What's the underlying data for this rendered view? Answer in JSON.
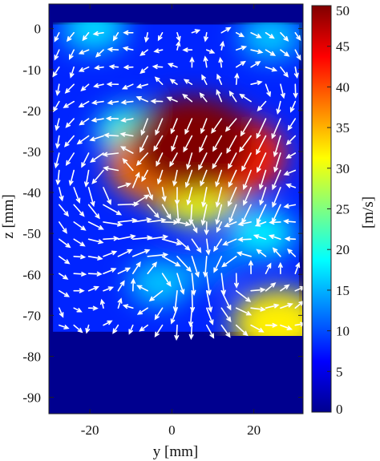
{
  "chart_data": {
    "type": "heatmap",
    "subtype": "velocity magnitude field with vector arrows",
    "xlabel": "y [mm]",
    "ylabel": "z [mm]",
    "colorbar_label": "[m/s]",
    "colormap": "jet",
    "xlim": [
      -30,
      32
    ],
    "ylim": [
      -94,
      6
    ],
    "clim": [
      0,
      50
    ],
    "x_ticks": [
      -20,
      0,
      20
    ],
    "y_ticks": [
      0,
      -10,
      -20,
      -30,
      -40,
      -50,
      -60,
      -70,
      -80,
      -90
    ],
    "colorbar_ticks": [
      0,
      5,
      10,
      15,
      20,
      25,
      30,
      35,
      40,
      45,
      50
    ],
    "x_tick_labels": [
      "-20",
      "0",
      "20"
    ],
    "y_tick_labels": [
      "0",
      "-10",
      "-20",
      "-30",
      "-40",
      "-50",
      "-60",
      "-70",
      "-80",
      "-90"
    ],
    "colorbar_tick_labels": [
      "0",
      "5",
      "10",
      "15",
      "20",
      "25",
      "30",
      "35",
      "40",
      "45",
      "50"
    ],
    "field_extent": {
      "y": [
        -29,
        31
      ],
      "z": [
        -74,
        1
      ]
    },
    "field_hotspots": [
      {
        "y": 5,
        "z": -28,
        "speed_mps": 50
      },
      {
        "y": 14,
        "z": -31,
        "speed_mps": 42
      },
      {
        "y": -3,
        "z": -33,
        "speed_mps": 38
      },
      {
        "y": 6,
        "z": -40,
        "speed_mps": 30
      },
      {
        "y": -10,
        "z": -25,
        "speed_mps": 20
      },
      {
        "y": 22,
        "z": -50,
        "speed_mps": 18
      },
      {
        "y": 26,
        "z": -72,
        "speed_mps": 32
      },
      {
        "y": -19,
        "z": 0,
        "speed_mps": 17
      },
      {
        "y": 24,
        "z": -2,
        "speed_mps": 16
      },
      {
        "y": -3,
        "z": -62,
        "speed_mps": 16
      },
      {
        "y": 10,
        "z": -58,
        "speed_mps": 12
      }
    ],
    "flow_vortices": [
      {
        "y": -14,
        "z": -38,
        "strength": 1.0
      },
      {
        "y": -3,
        "z": -60,
        "strength": -1.0
      },
      {
        "y": 16,
        "z": -60,
        "strength": 0.9
      },
      {
        "y": 21,
        "z": -16,
        "strength": -0.5
      }
    ],
    "grid": false,
    "vector_arrows": true
  }
}
